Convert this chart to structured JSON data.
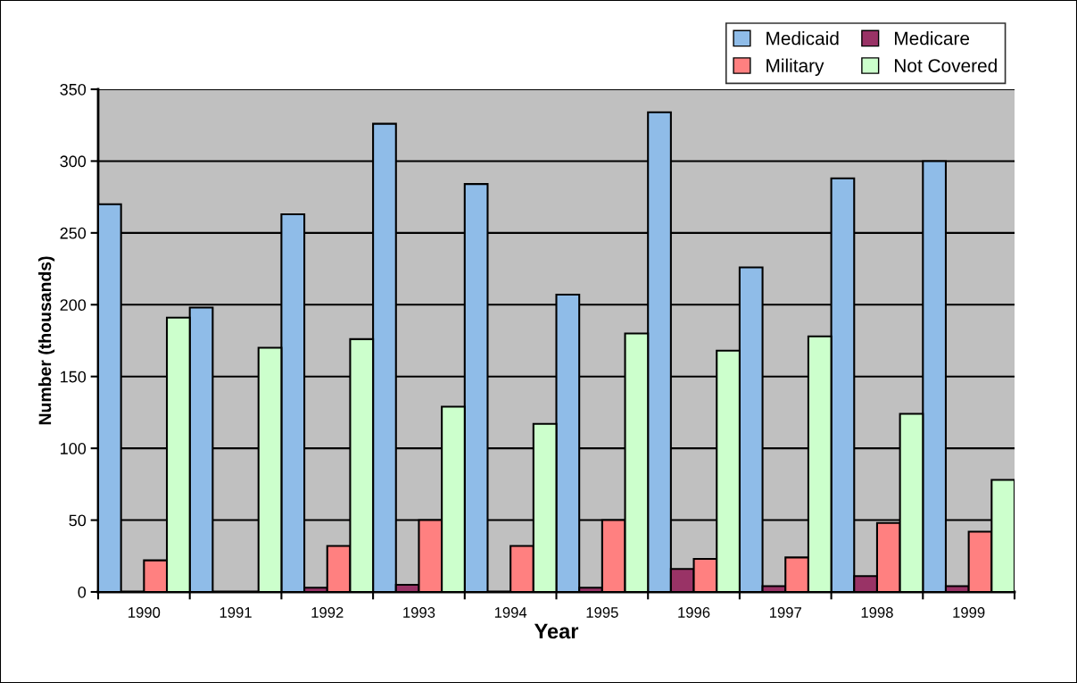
{
  "chart_data": {
    "type": "bar",
    "xlabel": "Year",
    "ylabel": "Number (thousands)",
    "categories": [
      "1990",
      "1991",
      "1992",
      "1993",
      "1994",
      "1995",
      "1996",
      "1997",
      "1998",
      "1999"
    ],
    "series": [
      {
        "name": "Medicaid",
        "color": "#8fbce8",
        "values": [
          270,
          198,
          263,
          326,
          284,
          207,
          334,
          226,
          288,
          300
        ]
      },
      {
        "name": "Medicare",
        "color": "#993366",
        "values": [
          0,
          0,
          3,
          5,
          0,
          3,
          16,
          4,
          11,
          4
        ]
      },
      {
        "name": "Military",
        "color": "#ff8080",
        "values": [
          22,
          0,
          32,
          50,
          32,
          50,
          23,
          24,
          48,
          42
        ]
      },
      {
        "name": "Not Covered",
        "color": "#ccffcc",
        "values": [
          191,
          170,
          176,
          129,
          117,
          180,
          168,
          178,
          124,
          78
        ]
      }
    ],
    "ylim": [
      0,
      350
    ],
    "yticks": [
      0,
      50,
      100,
      150,
      200,
      250,
      300,
      350
    ],
    "grid": "y",
    "legend": "top right"
  }
}
